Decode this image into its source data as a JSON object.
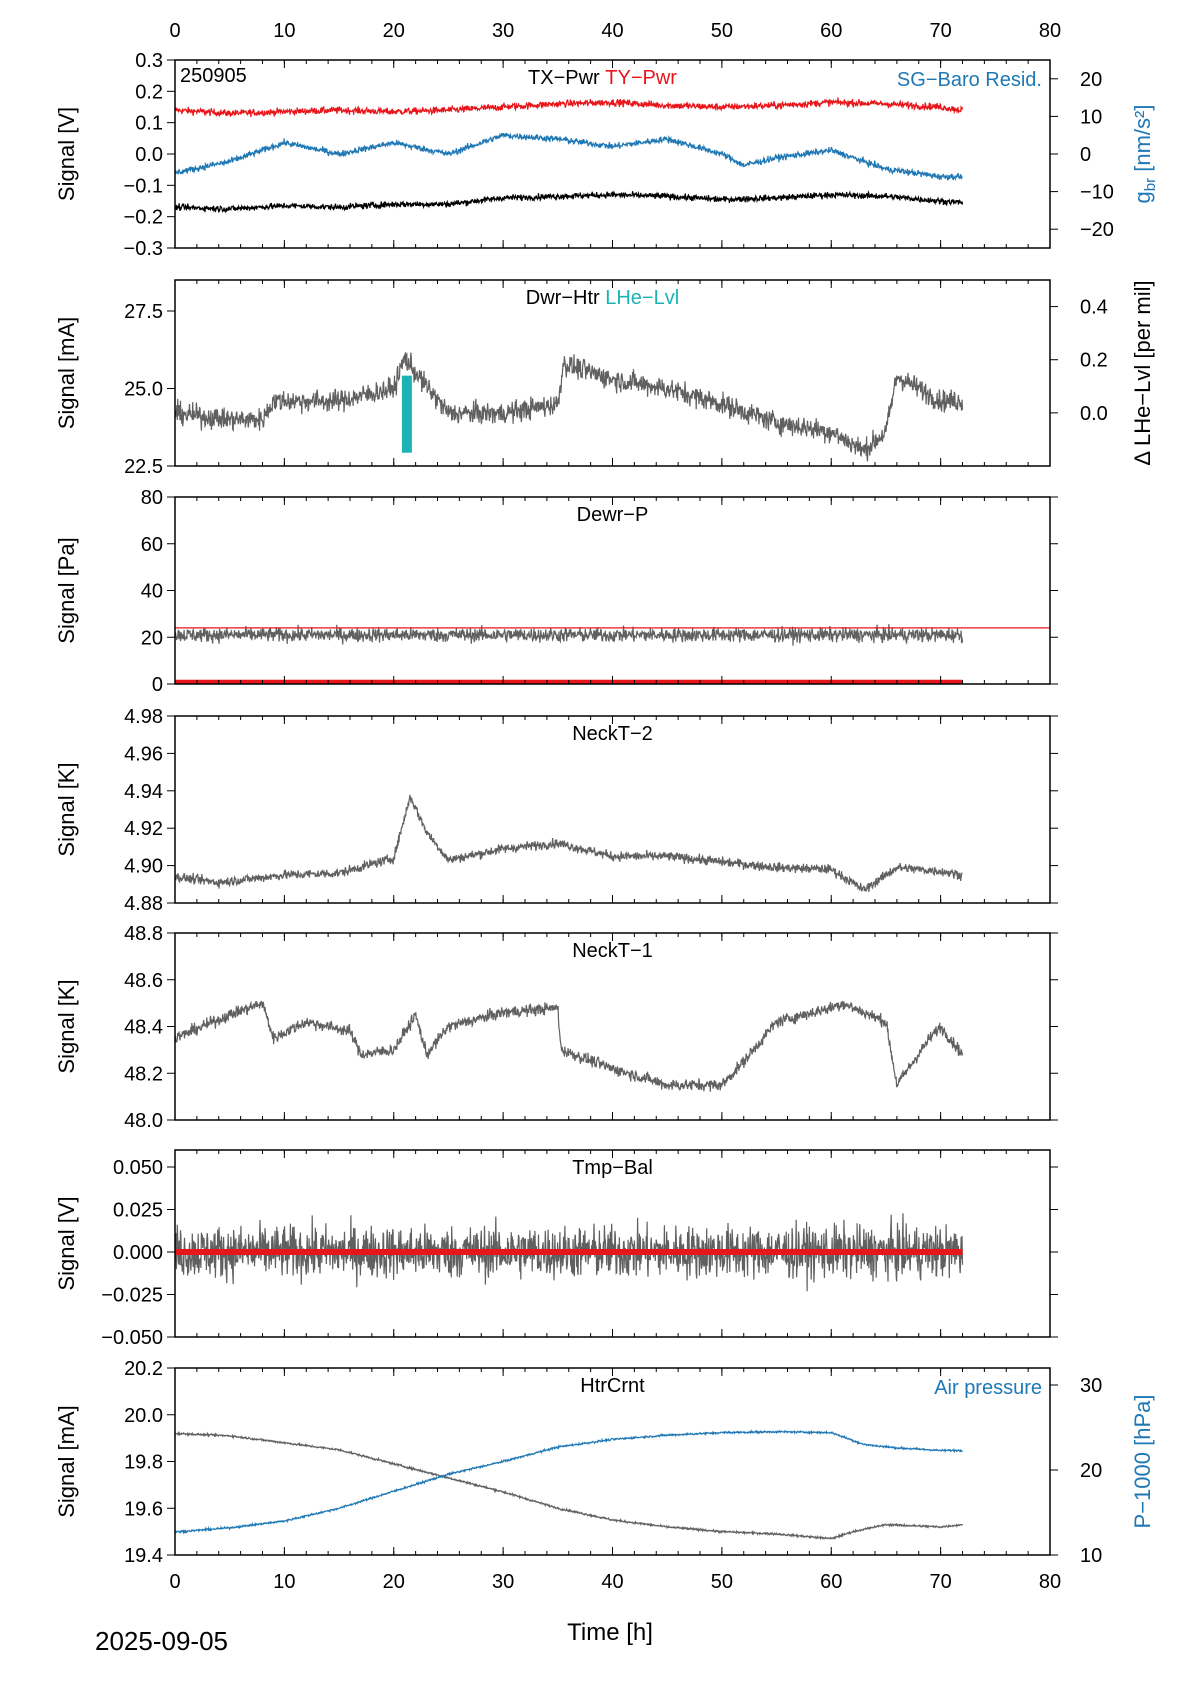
{
  "figure": {
    "date_label": "2025-09-05",
    "xlabel": "Time [h]",
    "top_ticks": [
      "0",
      "10",
      "20",
      "30",
      "40",
      "50",
      "60",
      "70",
      "80"
    ],
    "bottom_ticks": [
      "0",
      "10",
      "20",
      "30",
      "40",
      "50",
      "60",
      "70",
      "80"
    ],
    "xlim": [
      0,
      80
    ],
    "xticks": [
      0,
      10,
      20,
      30,
      40,
      50,
      60,
      70,
      80
    ],
    "data_end_h": 72
  },
  "chart_data": [
    {
      "type": "line",
      "corner_label": "250905",
      "title_parts": [
        {
          "text": "TX−Pwr",
          "color": "#000000"
        },
        {
          "text": "TY−Pwr",
          "color": "#e8161b"
        }
      ],
      "ylabel": "Signal [V]",
      "ylim": [
        -0.3,
        0.3
      ],
      "yticks": [
        -0.3,
        -0.2,
        -0.1,
        0.0,
        0.1,
        0.2,
        0.3
      ],
      "ytick_labels": [
        "−0.3",
        "−0.2",
        "−0.1",
        "0.0",
        "0.1",
        "0.2",
        "0.3"
      ],
      "right_axis": {
        "label": "g",
        "label_sub": "br",
        "label_rest": " [nm/s²]",
        "color": "#1f78b4",
        "ylim": [
          -25,
          25
        ],
        "yticks": [
          -20,
          -10,
          0,
          10,
          20
        ],
        "ytick_labels": [
          "−20",
          "−10",
          "0",
          "10",
          "20"
        ]
      },
      "right_title": {
        "text": "SG−Baro Resid.",
        "color": "#1f78b4"
      },
      "series": [
        {
          "color": "#e8161b",
          "axis": "left",
          "x": [
            0,
            5,
            10,
            15,
            20,
            25,
            30,
            35,
            40,
            45,
            50,
            55,
            60,
            65,
            70,
            72
          ],
          "y": [
            0.14,
            0.13,
            0.135,
            0.14,
            0.135,
            0.14,
            0.15,
            0.16,
            0.165,
            0.155,
            0.15,
            0.155,
            0.165,
            0.16,
            0.15,
            0.14
          ],
          "noise": 0.008
        },
        {
          "color": "#1f78b4",
          "axis": "right",
          "x": [
            0,
            5,
            10,
            15,
            20,
            25,
            30,
            35,
            40,
            45,
            50,
            52,
            55,
            60,
            65,
            70,
            72
          ],
          "y": [
            -5,
            -2,
            3,
            0,
            3,
            0,
            5,
            4,
            2,
            4,
            0,
            -3,
            -1,
            1,
            -4,
            -6,
            -6
          ],
          "noise": 0.6
        },
        {
          "color": "#000000",
          "axis": "left",
          "x": [
            0,
            5,
            10,
            15,
            20,
            25,
            30,
            35,
            40,
            45,
            50,
            55,
            60,
            65,
            70,
            72
          ],
          "y": [
            -0.17,
            -0.175,
            -0.165,
            -0.17,
            -0.16,
            -0.16,
            -0.14,
            -0.135,
            -0.13,
            -0.135,
            -0.145,
            -0.14,
            -0.13,
            -0.135,
            -0.15,
            -0.155
          ],
          "noise": 0.007
        }
      ]
    },
    {
      "type": "line",
      "title_parts": [
        {
          "text": "Dwr−Htr",
          "color": "#000000"
        },
        {
          "text": "LHe−Lvl",
          "color": "#1bb3b3"
        }
      ],
      "ylabel": "Signal [mA]",
      "ylim": [
        22.5,
        28.5
      ],
      "yticks": [
        22.5,
        25.0,
        27.5
      ],
      "ytick_labels": [
        "22.5",
        "25.0",
        "27.5"
      ],
      "right_axis": {
        "label": "Δ LHe−Lvl [per mil]",
        "color": "#000000",
        "ylim": [
          -0.2,
          0.5
        ],
        "yticks": [
          0.0,
          0.2,
          0.4
        ],
        "ytick_labels": [
          "0.0",
          "0.2",
          "0.4"
        ]
      },
      "series": [
        {
          "color": "#606060",
          "axis": "left",
          "x": [
            0,
            5,
            8,
            9,
            15,
            20,
            21,
            22,
            25,
            30,
            35,
            35.5,
            40,
            45,
            50,
            55,
            60,
            63,
            65,
            66,
            70,
            72
          ],
          "y": [
            24.2,
            24.0,
            24.0,
            24.6,
            24.6,
            25.0,
            26.0,
            25.5,
            24.2,
            24.2,
            24.5,
            25.8,
            25.3,
            25.0,
            24.5,
            23.9,
            23.6,
            23.0,
            23.6,
            25.4,
            24.6,
            24.6
          ],
          "noise": 0.25
        },
        {
          "color": "#1bb3b3",
          "axis": "right",
          "type": "bar",
          "x": [
            21.2
          ],
          "y": [
            0.14
          ],
          "y0": [
            -0.15
          ]
        }
      ]
    },
    {
      "type": "line",
      "title_parts": [
        {
          "text": "Dewr−P",
          "color": "#000000"
        }
      ],
      "ylabel": "Signal [Pa]",
      "ylim": [
        0,
        80
      ],
      "yticks": [
        0,
        20,
        40,
        60,
        80
      ],
      "ytick_labels": [
        "0",
        "20",
        "40",
        "60",
        "80"
      ],
      "series": [
        {
          "color": "#606060",
          "axis": "left",
          "x": [
            0,
            72
          ],
          "y": [
            21,
            21
          ],
          "noise": 2.2
        },
        {
          "color": "#e8161b",
          "axis": "left",
          "x": [
            0,
            80
          ],
          "y": [
            24,
            24
          ]
        },
        {
          "color": "#e8161b",
          "axis": "left",
          "x": [
            0,
            72
          ],
          "y": [
            0.5,
            0.5
          ]
        }
      ]
    },
    {
      "type": "line",
      "title_parts": [
        {
          "text": "NeckT−2",
          "color": "#000000"
        }
      ],
      "ylabel": "Signal [K]",
      "ylim": [
        4.88,
        4.98
      ],
      "yticks": [
        4.88,
        4.9,
        4.92,
        4.94,
        4.96,
        4.98
      ],
      "ytick_labels": [
        "4.88",
        "4.90",
        "4.92",
        "4.94",
        "4.96",
        "4.98"
      ],
      "series": [
        {
          "color": "#606060",
          "axis": "left",
          "x": [
            0,
            4,
            10,
            15,
            20,
            21.5,
            23,
            25,
            30,
            35,
            40,
            45,
            50,
            55,
            60,
            63,
            64,
            66,
            70,
            72
          ],
          "y": [
            4.894,
            4.891,
            4.895,
            4.896,
            4.904,
            4.937,
            4.918,
            4.903,
            4.909,
            4.912,
            4.905,
            4.905,
            4.902,
            4.899,
            4.898,
            4.887,
            4.891,
            4.899,
            4.897,
            4.895
          ],
          "noise": 0.0018
        }
      ]
    },
    {
      "type": "line",
      "title_parts": [
        {
          "text": "NeckT−1",
          "color": "#000000"
        }
      ],
      "ylabel": "Signal [K]",
      "ylim": [
        48.0,
        48.8
      ],
      "yticks": [
        48.0,
        48.2,
        48.4,
        48.6,
        48.8
      ],
      "ytick_labels": [
        "48.0",
        "48.2",
        "48.4",
        "48.6",
        "48.8"
      ],
      "series": [
        {
          "color": "#606060",
          "axis": "left",
          "x": [
            0,
            5,
            8,
            9,
            12,
            16,
            17,
            20,
            22,
            23,
            25,
            30,
            35,
            35.3,
            40,
            45,
            50,
            52,
            55,
            60,
            61,
            65,
            66,
            69,
            70,
            72
          ],
          "y": [
            48.35,
            48.45,
            48.5,
            48.35,
            48.42,
            48.38,
            48.28,
            48.3,
            48.45,
            48.28,
            48.4,
            48.46,
            48.48,
            48.3,
            48.22,
            48.15,
            48.15,
            48.25,
            48.42,
            48.48,
            48.5,
            48.42,
            48.15,
            48.35,
            48.4,
            48.28
          ],
          "noise": 0.018
        }
      ]
    },
    {
      "type": "line",
      "title_parts": [
        {
          "text": "Tmp−Bal",
          "color": "#000000"
        }
      ],
      "ylabel": "Signal [V]",
      "ylim": [
        -0.05,
        0.06
      ],
      "yticks": [
        -0.05,
        -0.025,
        0.0,
        0.025,
        0.05
      ],
      "ytick_labels": [
        "−0.050",
        "−0.025",
        "0.000",
        "0.025",
        "0.050"
      ],
      "series": [
        {
          "color": "#606060",
          "axis": "left",
          "x": [
            0,
            72
          ],
          "y": [
            0,
            0
          ],
          "noise": 0.011
        },
        {
          "color": "#e8161b",
          "axis": "left",
          "x": [
            0,
            72
          ],
          "y": [
            0,
            0
          ]
        }
      ]
    },
    {
      "type": "line",
      "title_parts": [
        {
          "text": "HtrCrnt",
          "color": "#000000"
        }
      ],
      "ylabel": "Signal [mA]",
      "ylim": [
        19.4,
        20.2
      ],
      "yticks": [
        19.4,
        19.6,
        19.8,
        20.0,
        20.2
      ],
      "ytick_labels": [
        "19.4",
        "19.6",
        "19.8",
        "20.0",
        "20.2"
      ],
      "right_axis": {
        "label": "P−1000 [hPa]",
        "color": "#1f78b4",
        "ylim": [
          10,
          32
        ],
        "yticks": [
          10,
          20,
          30
        ],
        "ytick_labels": [
          "10",
          "20",
          "30"
        ]
      },
      "right_title": {
        "text": "Air pressure",
        "color": "#1f78b4"
      },
      "series": [
        {
          "color": "#606060",
          "axis": "left",
          "x": [
            0,
            5,
            10,
            15,
            20,
            25,
            30,
            35,
            40,
            45,
            50,
            55,
            60,
            62,
            65,
            70,
            72
          ],
          "y": [
            19.92,
            19.91,
            19.88,
            19.85,
            19.79,
            19.73,
            19.67,
            19.6,
            19.55,
            19.52,
            19.5,
            19.49,
            19.47,
            19.5,
            19.53,
            19.52,
            19.53
          ],
          "noise": 0.003
        },
        {
          "color": "#1f78b4",
          "axis": "right",
          "x": [
            0,
            5,
            10,
            15,
            20,
            25,
            30,
            35,
            40,
            45,
            50,
            55,
            60,
            63,
            66,
            70,
            72
          ],
          "y": [
            12.7,
            13.2,
            14.0,
            15.5,
            17.5,
            19.5,
            21.0,
            22.7,
            23.6,
            24.1,
            24.4,
            24.5,
            24.4,
            23.0,
            22.6,
            22.3,
            22.3
          ],
          "noise": 0.08
        }
      ]
    }
  ]
}
